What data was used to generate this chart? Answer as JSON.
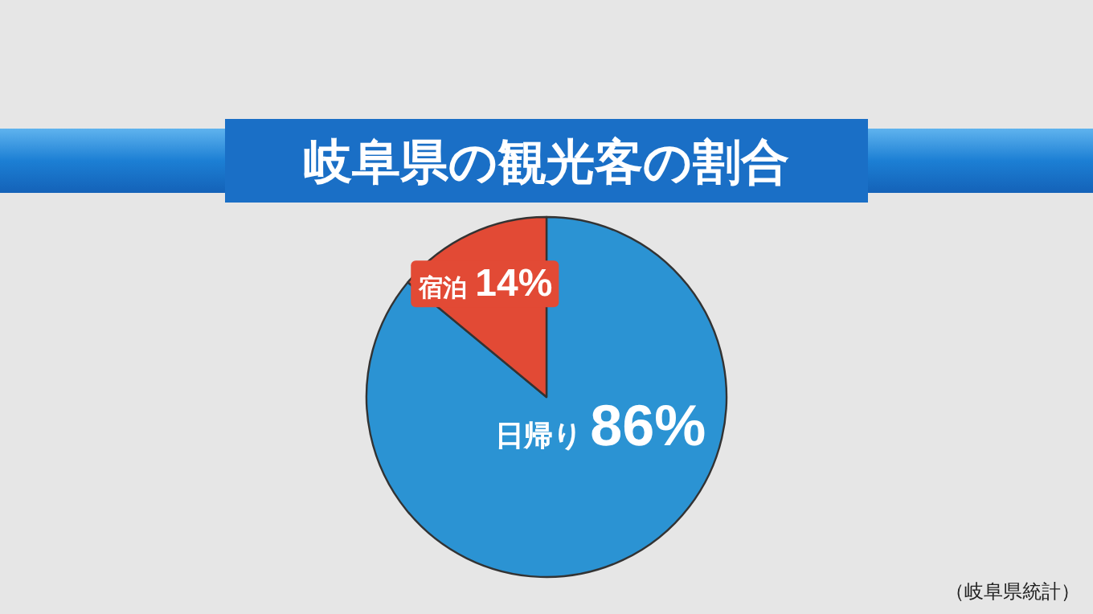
{
  "chart_data": {
    "type": "pie",
    "title": "岐阜県の観光客の割合",
    "categories": [
      "日帰り",
      "宿泊"
    ],
    "values": [
      86,
      14
    ],
    "value_labels": [
      "86%",
      "14%"
    ],
    "colors": [
      "#2b93d3",
      "#e24a35"
    ],
    "annotations": [
      "（岐阜県統計）"
    ]
  }
}
